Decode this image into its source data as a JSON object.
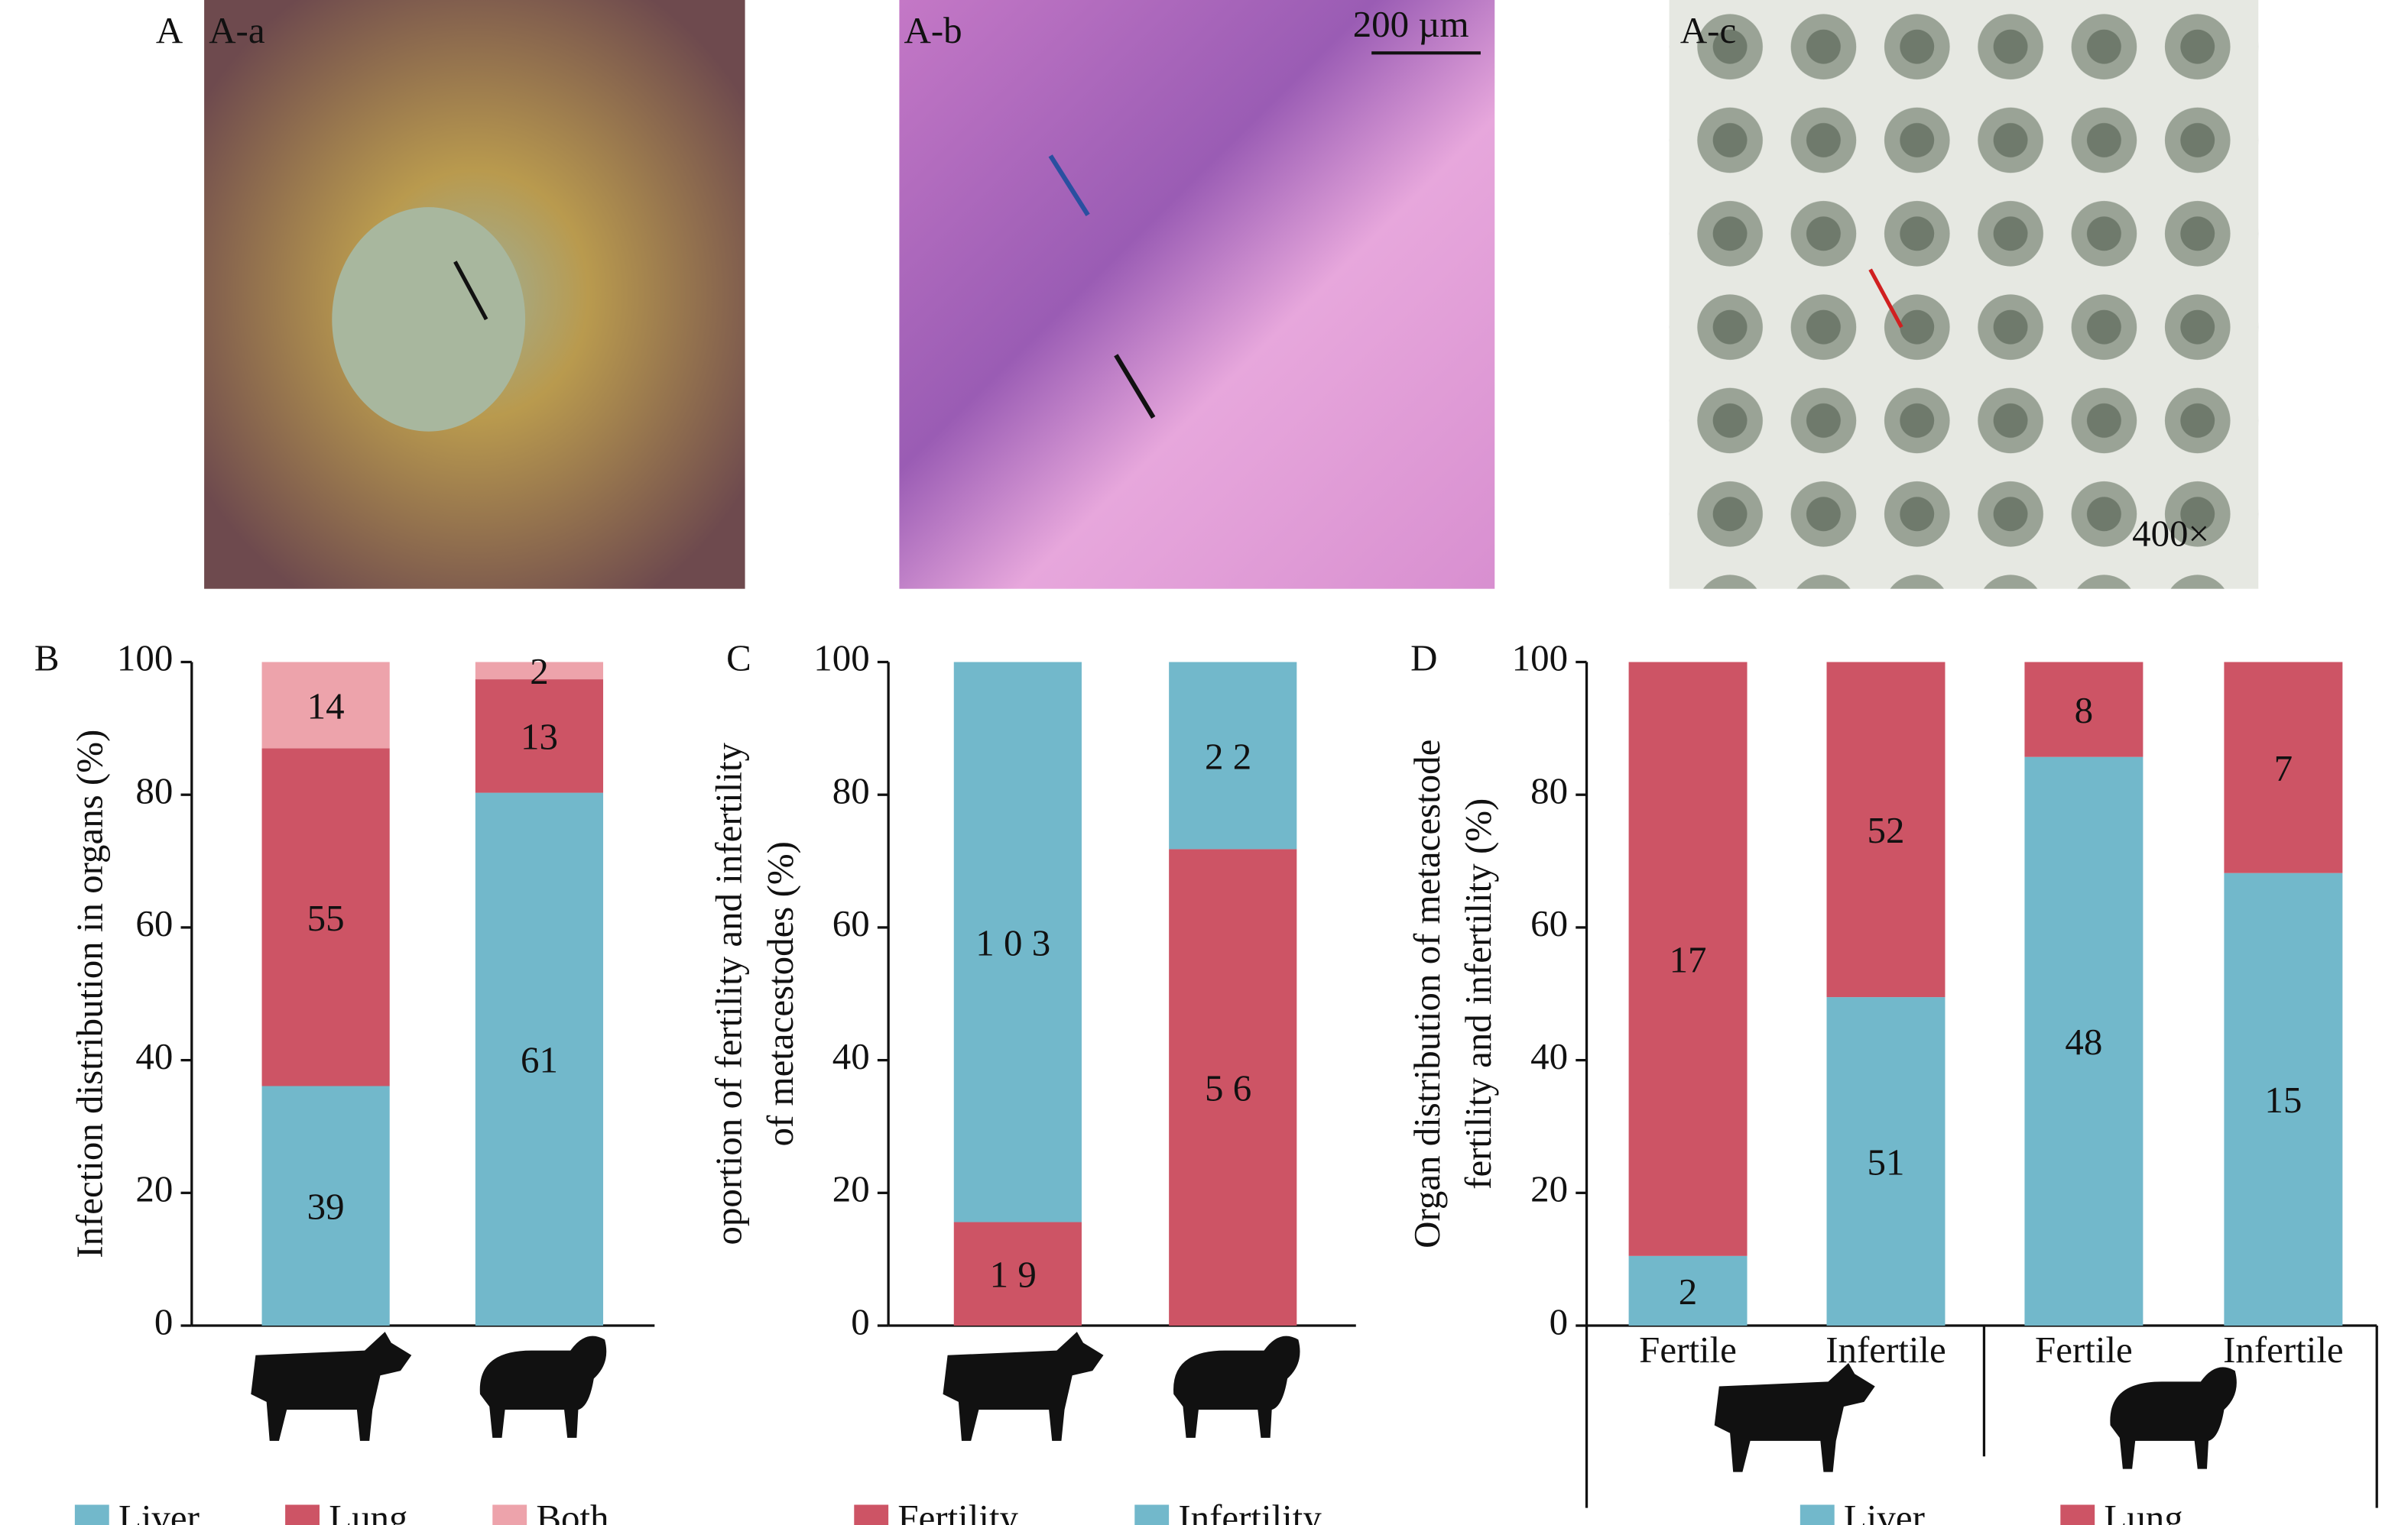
{
  "figure": {
    "panel_a": "A",
    "photos": [
      "A-a",
      "A-b",
      "A-c"
    ],
    "scale_bar": "200 µm",
    "magnification": "400×"
  },
  "chart_data": [
    {
      "type": "stacked-bar",
      "panel": "B",
      "ylabel": [
        "Infection distribution in organs (%)"
      ],
      "categories": [
        null,
        null
      ],
      "ylim": [
        0,
        100
      ],
      "yticks": [
        0,
        20,
        40,
        60,
        80,
        100
      ],
      "series": [
        {
          "name": "Liver",
          "color": "#72b8cb",
          "values": [
            36.1,
            80.3
          ],
          "counts": [
            39,
            61
          ]
        },
        {
          "name": "Lung",
          "color": "#cd5465",
          "values": [
            50.9,
            17.1
          ],
          "counts": [
            55,
            13
          ]
        },
        {
          "name": "Both",
          "color": "#eda3ab",
          "values": [
            13.0,
            2.6
          ],
          "counts": [
            14,
            2
          ]
        }
      ]
    },
    {
      "type": "stacked-bar",
      "panel": "C",
      "ylabel": [
        "oportion of fertility and infertility",
        "of metacestodes (%)"
      ],
      "categories": [
        null,
        null
      ],
      "ylim": [
        0,
        100
      ],
      "yticks": [
        0,
        20,
        40,
        60,
        80,
        100
      ],
      "series": [
        {
          "name": "Fertility",
          "color": "#cd5465",
          "values": [
            15.6,
            71.8
          ],
          "counts": [
            19,
            56
          ]
        },
        {
          "name": "Infertility",
          "color": "#72b8cb",
          "values": [
            84.4,
            28.2
          ],
          "counts": [
            103,
            22
          ]
        }
      ]
    },
    {
      "type": "stacked-bar",
      "panel": "D",
      "ylabel": [
        "Organ distribution of metacestode",
        "fertility and infertility (%)"
      ],
      "categories": [
        "Fertile",
        "Infertile",
        "Fertile",
        "Infertile"
      ],
      "ylim": [
        0,
        100
      ],
      "yticks": [
        0,
        20,
        40,
        60,
        80,
        100
      ],
      "series": [
        {
          "name": "Liver",
          "color": "#72b8cb",
          "values": [
            10.5,
            49.5,
            85.7,
            68.2
          ],
          "counts": [
            2,
            51,
            48,
            15
          ]
        },
        {
          "name": "Lung",
          "color": "#cd5465",
          "values": [
            89.5,
            50.5,
            14.3,
            31.8
          ],
          "counts": [
            17,
            52,
            8,
            7
          ]
        }
      ]
    }
  ]
}
